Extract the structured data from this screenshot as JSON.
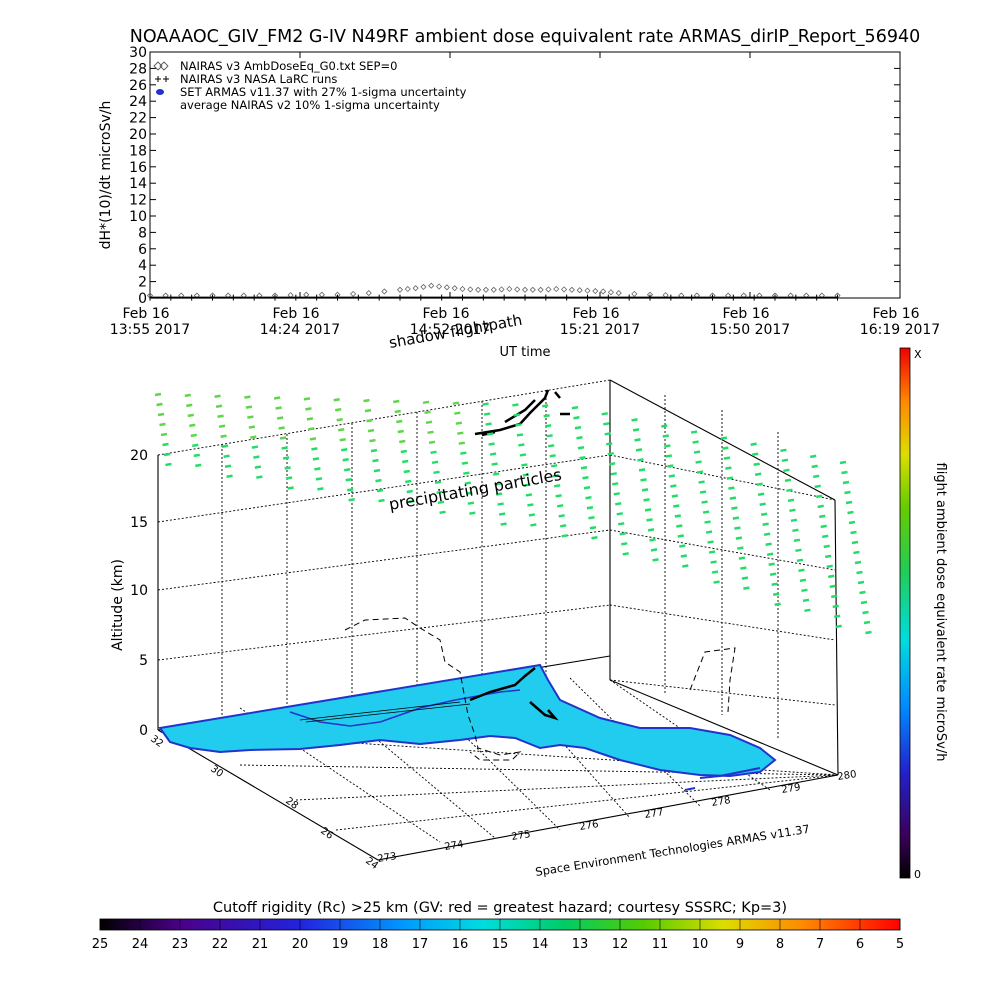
{
  "title": "NOAAAOC_GIV_FM2 G-IV   N49RF  ambient dose equivalent rate ARMAS_dirIP_Report_56940",
  "chart_data": [
    {
      "type": "line",
      "ylabel": "dH*(10)/dt microSv/h",
      "xlabel": "UT time",
      "ylim": [
        0,
        30
      ],
      "yticks": [
        "0",
        "2",
        "4",
        "6",
        "8",
        "10",
        "12",
        "14",
        "16",
        "18",
        "20",
        "22",
        "24",
        "26",
        "28",
        "30"
      ],
      "xticks": [
        {
          "day": "Feb 16",
          "time": "13:55 2017"
        },
        {
          "day": "Feb 16",
          "time": "14:24 2017"
        },
        {
          "day": "Feb 16",
          "time": "14:52 2017"
        },
        {
          "day": "Feb 16",
          "time": "15:21 2017"
        },
        {
          "day": "Feb 16",
          "time": "15:50 2017"
        },
        {
          "day": "Feb 16",
          "time": "16:19 2017"
        }
      ],
      "legend_position": "top-left",
      "legend": [
        {
          "label": "NAIRAS v3 AmbDoseEq_G0.txt SEP=0",
          "symbol": "diamond"
        },
        {
          "label": "NAIRAS v3 NASA LaRC runs",
          "symbol": "plus"
        },
        {
          "label": "SET ARMAS v11.37 with 27% 1-sigma uncertainty",
          "symbol": "blue-dot"
        },
        {
          "label": "average NAIRAS v2 10% 1-sigma uncertainty",
          "symbol": "none"
        }
      ],
      "series": [
        {
          "symbol": "diamond",
          "x_minutes": [
            0,
            6,
            12,
            18,
            24,
            30,
            36,
            42,
            48,
            51,
            54,
            57,
            60,
            63,
            66,
            69,
            72,
            75,
            78,
            81,
            84,
            87,
            90,
            96,
            102,
            108,
            114,
            120,
            126,
            132
          ],
          "values": [
            0.3,
            0.3,
            0.3,
            0.3,
            0.3,
            0.4,
            0.4,
            0.6,
            1.0,
            1.2,
            1.5,
            1.3,
            1.1,
            1.0,
            1.0,
            1.1,
            1.0,
            1.0,
            1.1,
            1.0,
            0.9,
            0.8,
            0.6,
            0.4,
            0.3,
            0.3,
            0.3,
            0.3,
            0.3,
            0.3
          ]
        },
        {
          "symbol": "plus",
          "x_minutes": [
            0,
            12,
            24,
            36,
            48,
            60,
            72,
            84,
            96,
            108,
            120,
            132
          ],
          "values": [
            0.05,
            0.05,
            0.05,
            0.05,
            0.05,
            0.05,
            0.05,
            0.05,
            0.05,
            0.05,
            0.05,
            0.05
          ]
        }
      ]
    },
    {
      "type": "scatter",
      "zlabel": "Altitude (km)",
      "zticks": [
        "0",
        "5",
        "10",
        "15",
        "20"
      ],
      "xticks": [
        "273",
        "274",
        "275",
        "276",
        "277",
        "278",
        "279",
        "280"
      ],
      "yticks": [
        "24",
        "26",
        "28",
        "30",
        "32"
      ],
      "colorbar_label": "flight ambient dose equivalent rate microSv/h",
      "colorbar_top": "X",
      "colorbar_bottom": "0",
      "annotations": [
        "shadow flightpath",
        "precipitating particles"
      ],
      "credit": "Space Environment Technologies ARMAS v11.37"
    }
  ],
  "rigidity_bar": {
    "title": "Cutoff rigidity (Rc) >25 km (GV: red = greatest hazard; courtesy SSSRC; Kp=3)",
    "ticks": [
      "25",
      "24",
      "23",
      "22",
      "21",
      "20",
      "19",
      "18",
      "17",
      "16",
      "15",
      "14",
      "13",
      "12",
      "11",
      "10",
      "9",
      "8",
      "7",
      "6",
      "5"
    ]
  },
  "colors": {
    "particles": "#22dd66",
    "particles_alt": "#5fd64a",
    "ground": "#22ccee",
    "coast": "#2233cc",
    "flight": "#000000",
    "diamond": "#666666"
  }
}
